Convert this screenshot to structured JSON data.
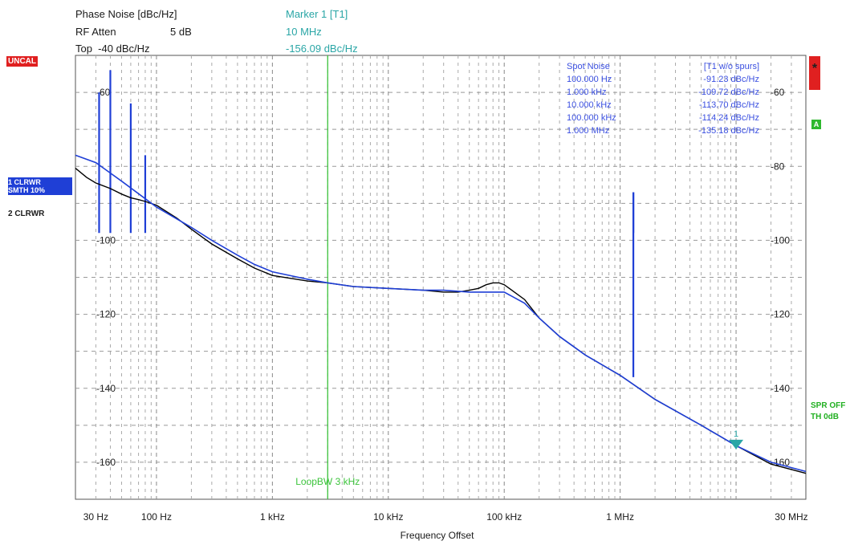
{
  "header": {
    "measure_label": "Phase Noise [dBc/Hz]",
    "atten_label": "RF Atten",
    "atten_value": "5 dB",
    "top_label": "Top  -40 dBc/Hz",
    "marker_label": "Marker 1 [T1]",
    "marker_freq": "10 MHz",
    "marker_value": "-156.09 dBc/Hz"
  },
  "flags": {
    "uncal": "UNCAL",
    "star": "*",
    "a_badge": "A",
    "trace1_line1": "1 CLRWR",
    "trace1_line2": "SMTH 10%",
    "trace2": "2 CLRWR",
    "spr_line1": "SPR OFF",
    "spr_line2": "TH 0dB"
  },
  "colors": {
    "trace_raw": "#000000",
    "trace_smooth": "#1f3fd6",
    "spur": "#1f3fd6",
    "loop_bw_line": "#3cc43c",
    "marker": "#2aa6a6",
    "text_blue": "#3a4fe0",
    "uncal_bg": "#e02020",
    "trace_badge_bg": "#1f3fd6"
  },
  "chart_data": {
    "type": "line",
    "title": "Phase Noise [dBc/Hz]",
    "xlabel": "Frequency Offset",
    "ylabel": "",
    "x_scale": "log",
    "xlim": [
      20,
      40000000
    ],
    "ylim": [
      -170,
      -50
    ],
    "x_ticks": [
      {
        "x": 30,
        "label": "30 Hz"
      },
      {
        "x": 100,
        "label": "100 Hz"
      },
      {
        "x": 1000,
        "label": "1 kHz"
      },
      {
        "x": 10000,
        "label": "10 kHz"
      },
      {
        "x": 100000,
        "label": "100 kHz"
      },
      {
        "x": 1000000,
        "label": "1 MHz"
      },
      {
        "x": 30000000,
        "label": "30 MHz"
      }
    ],
    "y_ticks_left": [
      {
        "y": -60,
        "label": "-60"
      },
      {
        "y": -100,
        "label": "-100"
      },
      {
        "y": -120,
        "label": "-120"
      },
      {
        "y": -140,
        "label": "-140"
      },
      {
        "y": -160,
        "label": "-160"
      }
    ],
    "y_ticks_right": [
      {
        "y": -60,
        "label": "-60"
      },
      {
        "y": -80,
        "label": "-80"
      },
      {
        "y": -100,
        "label": "-100"
      },
      {
        "y": -120,
        "label": "-120"
      },
      {
        "y": -140,
        "label": "-140"
      },
      {
        "y": -160,
        "label": "-160"
      }
    ],
    "grid": true,
    "series": [
      {
        "key": "raw",
        "color": "#000000",
        "x": [
          20,
          25,
          30,
          40,
          50,
          60,
          70,
          80,
          100,
          150,
          200,
          300,
          500,
          700,
          1000,
          2000,
          3000,
          5000,
          10000,
          20000,
          30000,
          40000,
          50000,
          60000,
          70000,
          80000,
          90000,
          100000,
          150000,
          200000,
          300000,
          500000,
          1000000,
          2000000,
          5000000,
          10000000,
          20000000,
          40000000
        ],
        "y": [
          -80.5,
          -83,
          -84.5,
          -86,
          -87.5,
          -88.5,
          -89,
          -89.5,
          -90.5,
          -94,
          -97,
          -101,
          -105,
          -107.5,
          -109.5,
          -111,
          -111.5,
          -112.5,
          -113,
          -113.5,
          -114,
          -114,
          -113.5,
          -113,
          -112,
          -111.5,
          -111.5,
          -112,
          -116,
          -121,
          -126,
          -131,
          -136.5,
          -143,
          -150,
          -155.5,
          -160.5,
          -163
        ]
      },
      {
        "key": "smooth",
        "color": "#1f3fd6",
        "x": [
          20,
          30,
          50,
          100,
          200,
          300,
          500,
          700,
          1000,
          2000,
          3000,
          5000,
          10000,
          20000,
          30000,
          50000,
          70000,
          100000,
          150000,
          200000,
          300000,
          500000,
          1000000,
          2000000,
          5000000,
          10000000,
          20000000,
          40000000
        ],
        "y": [
          -77,
          -79,
          -84,
          -91,
          -96.5,
          -100,
          -104,
          -106.5,
          -108.5,
          -110.5,
          -111.5,
          -112.5,
          -113,
          -113.5,
          -113.5,
          -114,
          -114,
          -114,
          -117,
          -121,
          -126,
          -131,
          -136.5,
          -143,
          -150,
          -155.5,
          -160,
          -162.5
        ]
      }
    ],
    "spurs": [
      {
        "x": 32,
        "y": -60
      },
      {
        "x": 40,
        "y": -54
      },
      {
        "x": 60,
        "y": -63
      },
      {
        "x": 80,
        "y": -77
      },
      {
        "x": 1300000,
        "y": -87
      }
    ],
    "loop_bw": {
      "x": 3000,
      "label": "LoopBW 3 kHz"
    },
    "marker": {
      "x": 10000000,
      "y": -156.09,
      "label": "1"
    },
    "spot_noise_table": {
      "headers": [
        "Spot Noise",
        "[T1 w/o spurs]"
      ],
      "rows": [
        [
          "100.000 Hz",
          "-91.23 dBc/Hz"
        ],
        [
          "1.000 kHz",
          "-109.72 dBc/Hz"
        ],
        [
          "10.000 kHz",
          "-113.70 dBc/Hz"
        ],
        [
          "100.000 kHz",
          "-114.24 dBc/Hz"
        ],
        [
          "1.000 MHz",
          "-135.18 dBc/Hz"
        ]
      ]
    }
  }
}
